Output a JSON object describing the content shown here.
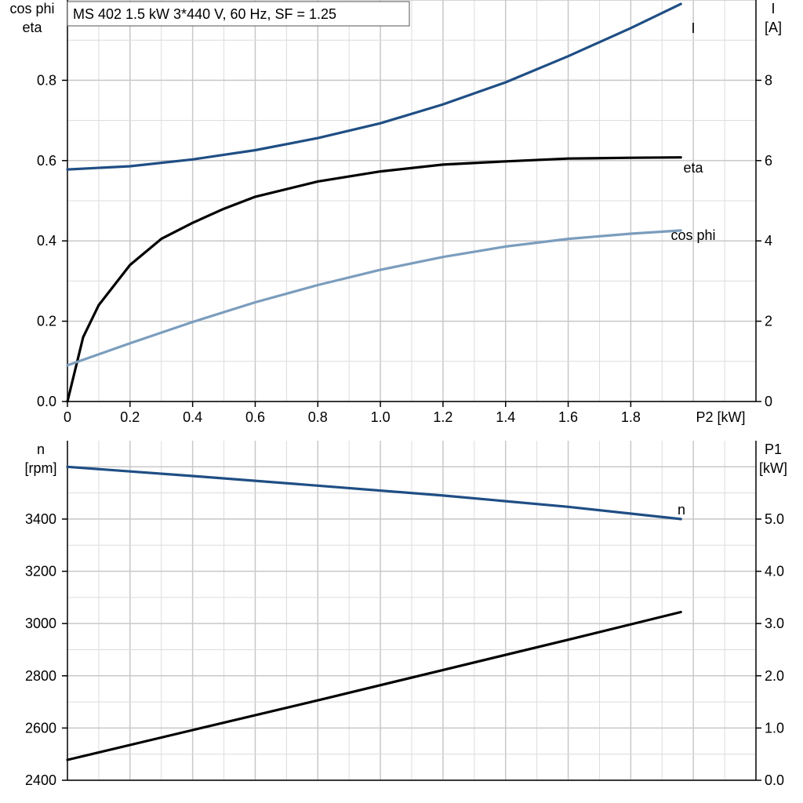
{
  "info_box": "MS 402   1.5 kW   3*440 V, 60 Hz, SF = 1.25",
  "colors": {
    "I": "#1f4e84",
    "eta": "#000000",
    "cos_phi": "#7b9dbd",
    "n": "#1f4e84",
    "P1": "#000000"
  },
  "chart_data": [
    {
      "type": "line",
      "x_label": "P2 [kW]",
      "xlim": [
        0,
        2.2
      ],
      "x_ticks": [
        "0",
        "0.2",
        "0.4",
        "0.6",
        "0.8",
        "1.0",
        "1.2",
        "1.4",
        "1.6",
        "1.8"
      ],
      "y_left": {
        "label_lines": [
          "cos phi",
          "eta"
        ],
        "ylim": [
          0,
          1.0
        ],
        "ticks": [
          "0.0",
          "0.2",
          "0.4",
          "0.6",
          "0.8"
        ]
      },
      "y_right": {
        "label_lines": [
          "I",
          "[A]"
        ],
        "ylim": [
          0,
          10
        ],
        "ticks": [
          "0",
          "2",
          "4",
          "6",
          "8"
        ]
      },
      "grid": true,
      "series": [
        {
          "name": "I",
          "axis": "right",
          "x": [
            0,
            0.2,
            0.4,
            0.6,
            0.8,
            1.0,
            1.2,
            1.4,
            1.6,
            1.8,
            1.96
          ],
          "y": [
            5.78,
            5.86,
            6.03,
            6.26,
            6.56,
            6.93,
            7.4,
            7.95,
            8.6,
            9.3,
            9.9
          ]
        },
        {
          "name": "eta",
          "axis": "left",
          "x": [
            0,
            0.05,
            0.1,
            0.2,
            0.3,
            0.4,
            0.5,
            0.6,
            0.8,
            1.0,
            1.2,
            1.4,
            1.6,
            1.8,
            1.96
          ],
          "y": [
            0.0,
            0.16,
            0.24,
            0.34,
            0.405,
            0.445,
            0.48,
            0.51,
            0.548,
            0.573,
            0.59,
            0.598,
            0.605,
            0.607,
            0.608
          ]
        },
        {
          "name": "cos phi",
          "axis": "left",
          "x": [
            0,
            0.2,
            0.4,
            0.6,
            0.8,
            1.0,
            1.2,
            1.4,
            1.6,
            1.8,
            1.96
          ],
          "y": [
            0.09,
            0.145,
            0.198,
            0.247,
            0.29,
            0.328,
            0.36,
            0.386,
            0.405,
            0.418,
            0.426
          ]
        }
      ]
    },
    {
      "type": "line",
      "xlim": [
        0,
        2.2
      ],
      "y_left": {
        "label_lines": [
          "n",
          "[rpm]"
        ],
        "ylim": [
          2400,
          3700
        ],
        "ticks": [
          "2400",
          "2600",
          "2800",
          "3000",
          "3200",
          "3400"
        ]
      },
      "y_right": {
        "label_lines": [
          "P1",
          "[kW]"
        ],
        "ylim": [
          0,
          6.5
        ],
        "ticks": [
          "0.0",
          "1.0",
          "2.0",
          "3.0",
          "4.0",
          "5.0"
        ]
      },
      "grid": true,
      "series": [
        {
          "name": "n",
          "axis": "left",
          "x": [
            0,
            0.4,
            0.8,
            1.2,
            1.6,
            1.96
          ],
          "y": [
            3600,
            3565,
            3528,
            3490,
            3447,
            3400
          ]
        },
        {
          "axis": "right",
          "x": [
            0,
            0.4,
            0.8,
            1.2,
            1.6,
            1.96
          ],
          "y": [
            0.39,
            0.96,
            1.53,
            2.11,
            2.69,
            3.22
          ]
        }
      ]
    }
  ]
}
